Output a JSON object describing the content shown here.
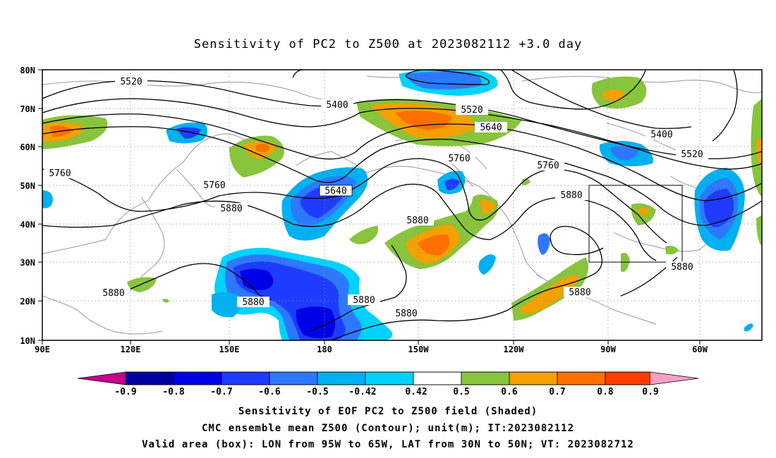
{
  "title": "Sensitivity of PC2 to Z500 at 2023082112 +3.0 day",
  "lat_labels": [
    "80N",
    "70N",
    "60N",
    "50N",
    "40N",
    "30N",
    "20N",
    "10N"
  ],
  "lon_labels": [
    "90E",
    "120E",
    "150E",
    "180",
    "150W",
    "120W",
    "90W",
    "60W"
  ],
  "contour_labels": [
    {
      "text": "5520",
      "id": "c5520a"
    },
    {
      "text": "5400",
      "id": "c5400a"
    },
    {
      "text": "5520",
      "id": "c5520b"
    },
    {
      "text": "5640",
      "id": "c5640a"
    },
    {
      "text": "5400",
      "id": "c5400b"
    },
    {
      "text": "5520",
      "id": "c5520c"
    },
    {
      "text": "5760",
      "id": "c5760a"
    },
    {
      "text": "5760",
      "id": "c5760b"
    },
    {
      "text": "5640",
      "id": "c5640b"
    },
    {
      "text": "5880",
      "id": "c5880a"
    },
    {
      "text": "5760",
      "id": "c5760c"
    },
    {
      "text": "5760",
      "id": "c5760d"
    },
    {
      "text": "5880",
      "id": "c5880b"
    },
    {
      "text": "5880",
      "id": "c5880c"
    },
    {
      "text": "5880",
      "id": "c5880d"
    },
    {
      "text": "5880",
      "id": "c5880e"
    },
    {
      "text": "5880",
      "id": "c5880f"
    },
    {
      "text": "5880",
      "id": "c5880g"
    },
    {
      "text": "5880",
      "id": "c5880h"
    },
    {
      "text": "5880",
      "id": "c5880i"
    }
  ],
  "colorbar": {
    "colors": [
      "#c4008c",
      "#0000a0",
      "#0000e8",
      "#1e3cff",
      "#2e78ff",
      "#00b0f0",
      "#00d2ff",
      "#ffffff",
      "#88c43c",
      "#f4a000",
      "#ff7000",
      "#ff3c00",
      "#ff0000",
      "#f6a0c8"
    ],
    "labels": [
      "-0.9",
      "-0.8",
      "-0.7",
      "-0.6",
      "-0.5",
      "-0.42",
      "0.42",
      "0.5",
      "0.6",
      "0.7",
      "0.8",
      "0.9"
    ]
  },
  "footer": [
    "Sensitivity of EOF PC2 to Z500 field (Shaded)",
    "CMC ensemble mean Z500 (Contour); unit(m); IT:2023082112",
    "Valid area (box): LON from 95W to 65W, LAT from 30N to 50N; VT: 2023082712"
  ]
}
